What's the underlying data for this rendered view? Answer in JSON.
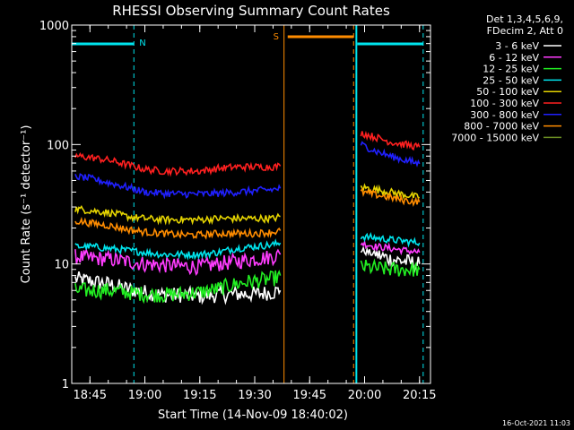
{
  "chart_data": {
    "type": "line",
    "title": "RHESSI Observing Summary Count Rates",
    "xlabel": "Start Time (14-Nov-09 18:40:02)",
    "ylabel": "Count Rate (s⁻¹ detector⁻¹)",
    "yscale": "log",
    "ylim": [
      1,
      1000
    ],
    "xlim": [
      "18:40:02",
      "20:18"
    ],
    "x_ticks": [
      "18:45",
      "19:00",
      "19:15",
      "19:30",
      "19:45",
      "20:00",
      "20:15"
    ],
    "y_ticks": [
      "1",
      "10",
      "100",
      "1000"
    ],
    "legend_header": [
      "Det 1,3,4,5,6,9,",
      "FDecim 2, Att 0"
    ],
    "legend_position": "right",
    "timestamp": "16-Oct-2021 11:03",
    "markers": [
      {
        "label": "N",
        "time": "18:57",
        "color": "#00e5ee"
      },
      {
        "label": "S",
        "time": "19:38",
        "color": "#ff8c00"
      }
    ],
    "night_intervals": [
      [
        "18:40",
        "18:57"
      ],
      [
        "19:58",
        "20:16"
      ]
    ],
    "saa_interval": [
      "19:39",
      "19:57"
    ],
    "data_gap": [
      "19:38",
      "19:58"
    ],
    "series": [
      {
        "name": "3 - 6 keV",
        "color": "#ffffff",
        "segments": [
          {
            "x": [
              "18:41",
              "18:45",
              "18:50",
              "18:55",
              "19:00",
              "19:05",
              "19:10",
              "19:15",
              "19:20",
              "19:25",
              "19:30",
              "19:35",
              "19:37"
            ],
            "y": [
              7.5,
              7.2,
              6.8,
              6.2,
              5.8,
              5.5,
              5.5,
              5.4,
              5.5,
              5.6,
              5.6,
              5.8,
              6.0
            ]
          },
          {
            "x": [
              "19:59",
              "20:03",
              "20:07",
              "20:11",
              "20:15"
            ],
            "y": [
              13,
              12,
              11,
              10.5,
              10
            ]
          }
        ]
      },
      {
        "name": "6 - 12 keV",
        "color": "#ff3cff",
        "segments": [
          {
            "x": [
              "18:41",
              "18:45",
              "18:50",
              "18:55",
              "19:00",
              "19:05",
              "19:10",
              "19:15",
              "19:20",
              "19:25",
              "19:30",
              "19:35",
              "19:37"
            ],
            "y": [
              11.5,
              11.2,
              11,
              10.5,
              10,
              9.8,
              9.6,
              9.5,
              10,
              10.5,
              11,
              11.5,
              12
            ]
          },
          {
            "x": [
              "19:59",
              "20:03",
              "20:07",
              "20:11",
              "20:15"
            ],
            "y": [
              15,
              14,
              13.5,
              13,
              12.5
            ]
          }
        ]
      },
      {
        "name": "12 - 25 keV",
        "color": "#22ee22",
        "segments": [
          {
            "x": [
              "18:41",
              "18:45",
              "18:50",
              "18:55",
              "19:00",
              "19:05",
              "19:10",
              "19:15",
              "19:20",
              "19:25",
              "19:30",
              "19:35",
              "19:37"
            ],
            "y": [
              6,
              6,
              6,
              5.8,
              5.6,
              5.5,
              5.6,
              5.8,
              6.2,
              6.8,
              7.2,
              7.5,
              8
            ]
          },
          {
            "x": [
              "19:59",
              "20:03",
              "20:07",
              "20:11",
              "20:15"
            ],
            "y": [
              9.5,
              9.2,
              9,
              9,
              9
            ]
          }
        ]
      },
      {
        "name": "25 - 50 keV",
        "color": "#00e5ee",
        "segments": [
          {
            "x": [
              "18:41",
              "18:45",
              "18:50",
              "18:55",
              "19:00",
              "19:05",
              "19:10",
              "19:15",
              "19:20",
              "19:25",
              "19:30",
              "19:35",
              "19:37"
            ],
            "y": [
              14,
              14,
              13.5,
              13,
              12.5,
              12,
              12,
              12,
              12.5,
              13.5,
              14,
              14.5,
              15
            ]
          },
          {
            "x": [
              "19:59",
              "20:03",
              "20:07",
              "20:11",
              "20:15"
            ],
            "y": [
              17,
              16.5,
              16,
              15.5,
              15
            ]
          }
        ]
      },
      {
        "name": "50 - 100 keV",
        "color": "#e6d500",
        "segments": [
          {
            "x": [
              "18:41",
              "18:45",
              "18:50",
              "18:55",
              "19:00",
              "19:05",
              "19:10",
              "19:15",
              "19:20",
              "19:25",
              "19:30",
              "19:35",
              "19:37"
            ],
            "y": [
              29,
              28,
              27,
              25,
              24,
              23.5,
              23.5,
              23.5,
              24,
              24,
              24,
              24,
              25
            ]
          },
          {
            "x": [
              "19:59",
              "20:03",
              "20:07",
              "20:11",
              "20:15"
            ],
            "y": [
              44,
              42,
              40,
              38,
              36
            ]
          }
        ]
      },
      {
        "name": "100 - 300 keV",
        "color": "#ff2020",
        "segments": [
          {
            "x": [
              "18:41",
              "18:45",
              "18:50",
              "18:55",
              "19:00",
              "19:05",
              "19:10",
              "19:15",
              "19:20",
              "19:25",
              "19:30",
              "19:35",
              "19:37"
            ],
            "y": [
              80,
              78,
              74,
              68,
              62,
              60,
              60,
              60,
              63,
              65,
              65,
              65,
              66
            ]
          },
          {
            "x": [
              "19:59",
              "20:03",
              "20:07",
              "20:11",
              "20:15"
            ],
            "y": [
              125,
              115,
              105,
              100,
              95
            ]
          }
        ]
      },
      {
        "name": "300 - 800 keV",
        "color": "#2020ff",
        "segments": [
          {
            "x": [
              "18:41",
              "18:45",
              "18:50",
              "18:55",
              "19:00",
              "19:05",
              "19:10",
              "19:15",
              "19:20",
              "19:25",
              "19:30",
              "19:35",
              "19:37"
            ],
            "y": [
              54,
              52,
              48,
              44,
              40,
              39,
              38.5,
              38.5,
              39,
              40,
              41,
              42,
              43
            ]
          },
          {
            "x": [
              "19:59",
              "20:03",
              "20:07",
              "20:11",
              "20:15"
            ],
            "y": [
              100,
              88,
              80,
              74,
              69
            ]
          }
        ]
      },
      {
        "name": "800 - 7000 keV",
        "color": "#ff8c00",
        "segments": [
          {
            "x": [
              "18:41",
              "18:45",
              "18:50",
              "18:55",
              "19:00",
              "19:05",
              "19:10",
              "19:15",
              "19:20",
              "19:25",
              "19:30",
              "19:35",
              "19:37"
            ],
            "y": [
              23,
              22,
              21,
              19.5,
              18.5,
              18,
              17.5,
              17.5,
              18,
              18,
              18,
              18.5,
              19
            ]
          },
          {
            "x": [
              "19:59",
              "20:03",
              "20:07",
              "20:11",
              "20:15"
            ],
            "y": [
              40,
              38,
              36,
              34,
              33
            ]
          }
        ]
      },
      {
        "name": "7000 - 15000 keV",
        "color": "#6b8e23",
        "segments": []
      }
    ]
  }
}
